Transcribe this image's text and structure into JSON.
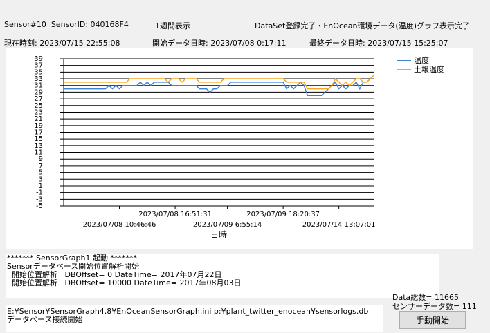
{
  "header": {
    "sensor": "Sensor#10  SensorID: 040168F4",
    "view_mode": "1週間表示",
    "status": "DataSet登録完了・EnOcean環境データ(温度)グラフ表示完了"
  },
  "times": {
    "current": "現在時刻: 2023/07/15 22:55:08",
    "start": "開始データ日時: 2023/07/08 0:17:11",
    "last": "最終データ日時: 2023/07/15 15:25:07"
  },
  "chart_data": {
    "type": "line",
    "xlabel": "日時",
    "legend": "right",
    "grid": true,
    "categories": [
      null,
      null,
      null,
      null,
      null,
      null,
      null,
      null,
      null,
      null,
      null,
      null,
      null,
      null,
      null,
      null,
      "2023/07/08 10:46:46",
      null,
      null,
      null,
      null,
      null,
      null,
      null,
      null,
      null,
      null,
      null,
      null,
      null,
      null,
      null,
      "2023/07/08 16:51:31",
      null,
      null,
      null,
      null,
      null,
      null,
      null,
      null,
      null,
      null,
      null,
      null,
      null,
      null,
      "2023/07/09 6:55:14",
      null,
      null,
      null,
      null,
      null,
      null,
      null,
      null,
      null,
      null,
      null,
      null,
      null,
      null,
      null,
      "2023/07/09 18:20:37",
      null,
      null,
      null,
      null,
      null,
      null,
      null,
      null,
      null,
      null,
      null,
      null,
      null,
      null,
      null,
      "2023/07/14 13:07:01",
      null,
      null,
      null,
      null,
      null,
      null,
      null,
      null,
      null,
      null
    ],
    "series": [
      {
        "name": "温度",
        "color": "#3f7fd6",
        "values": [
          30,
          30,
          30,
          30,
          30,
          30,
          30,
          30,
          30,
          30,
          30,
          30,
          30,
          31,
          30,
          31,
          30,
          31,
          31,
          31,
          31,
          31,
          32,
          31,
          32,
          31,
          32,
          32,
          32,
          32,
          32,
          31,
          31,
          31,
          31,
          31,
          31,
          31,
          31,
          30,
          30,
          30,
          29,
          30,
          30,
          31,
          31,
          31,
          32,
          32,
          32,
          32,
          32,
          32,
          32,
          32,
          32,
          32,
          32,
          32,
          32,
          32,
          32,
          32,
          30,
          31,
          30,
          31,
          32,
          31,
          28,
          28,
          28,
          28,
          28,
          29,
          30,
          31,
          32,
          30,
          31,
          30,
          31,
          31,
          32,
          30,
          32,
          32,
          33,
          33
        ]
      },
      {
        "name": "土壌温度",
        "color": "#f5a623",
        "values": [
          32,
          32,
          32,
          32,
          32,
          32,
          32,
          32,
          32,
          32,
          32,
          32,
          32,
          32,
          32,
          32,
          32,
          32,
          32,
          33,
          33,
          33,
          33,
          33,
          33,
          33,
          33,
          33,
          33,
          33,
          32,
          33,
          33,
          33,
          32,
          33,
          33,
          33,
          33,
          32,
          32,
          32,
          32,
          32,
          32,
          32,
          33,
          33,
          33,
          33,
          33,
          33,
          33,
          33,
          33,
          33,
          33,
          33,
          33,
          33,
          33,
          33,
          33,
          33,
          32,
          32,
          32,
          32,
          32,
          32,
          30,
          30,
          30,
          30,
          30,
          30,
          30,
          31,
          33,
          32,
          31,
          32,
          31,
          32,
          33,
          33,
          32,
          32,
          33,
          34
        ]
      }
    ],
    "ylim": [
      -5,
      39
    ],
    "yticks": [
      -5,
      -3,
      -1,
      1,
      3,
      5,
      7,
      9,
      11,
      13,
      15,
      17,
      19,
      21,
      23,
      25,
      27,
      29,
      31,
      33,
      35,
      37,
      39
    ]
  },
  "log": {
    "lines": [
      "******* SensorGraph1 起動 *******",
      "Sensorデータベース開始位置解析開始",
      "  開始位置解析   DBOffset= 0 DateTime= 2017年07月22日",
      "  開始位置解析   DBOffset= 10000 DateTime= 2017年08月03日"
    ]
  },
  "path_log": {
    "lines": [
      "E:¥Sensor¥SensorGraph4.8¥EnOceanSensorGraph.ini p:¥plant_twitter_enocean¥sensorlogs.db",
      "データベース接続開始"
    ]
  },
  "stats": {
    "total": "Data総数= 11665",
    "sensor_count": "センサーデータ数= 111"
  },
  "button": {
    "label": "手動開始"
  }
}
